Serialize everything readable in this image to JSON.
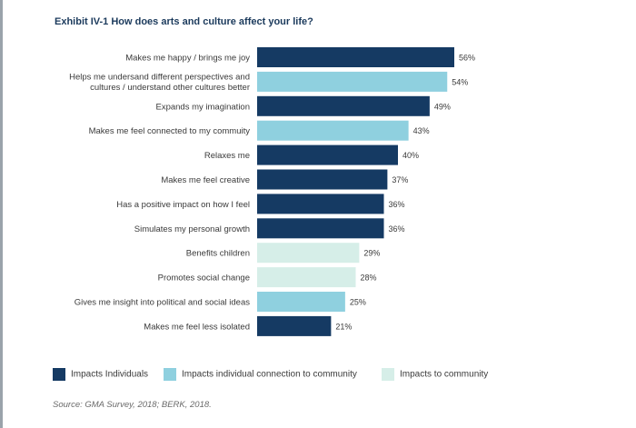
{
  "chart_data": {
    "type": "bar",
    "orientation": "horizontal",
    "title": "Exhibit IV-1 How does arts and culture affect your life?",
    "categories": [
      [
        "Makes me happy / brings me joy"
      ],
      [
        "Helps me undersand different perspectives and",
        "cultures / understand other cultures better"
      ],
      [
        "Expands my imagination"
      ],
      [
        "Makes me feel connected to my commuity"
      ],
      [
        "Relaxes me"
      ],
      [
        "Makes me feel creative"
      ],
      [
        "Has a positive impact on how I feel"
      ],
      [
        "Simulates my personal growth"
      ],
      [
        "Benefits children"
      ],
      [
        "Promotes social change"
      ],
      [
        "Gives me insight into political and social ideas"
      ],
      [
        "Makes me feel less isolated"
      ]
    ],
    "values": [
      56,
      54,
      49,
      43,
      40,
      37,
      36,
      36,
      29,
      28,
      25,
      21
    ],
    "value_labels": [
      "56%",
      "54%",
      "49%",
      "43%",
      "40%",
      "37%",
      "36%",
      "36%",
      "29%",
      "28%",
      "25%",
      "21%"
    ],
    "groups": [
      0,
      1,
      0,
      1,
      0,
      0,
      0,
      0,
      2,
      2,
      1,
      0
    ],
    "xlim": [
      0,
      56
    ],
    "legend": [
      {
        "label": "Impacts Individuals",
        "color": "#153a63"
      },
      {
        "label": "Impacts individual connection to community",
        "color": "#8fd0df"
      },
      {
        "label": "Impacts to community",
        "color": "#d6eee8"
      }
    ],
    "legend_position": "bottom"
  },
  "source": "Source: GMA Survey, 2018; BERK, 2018."
}
